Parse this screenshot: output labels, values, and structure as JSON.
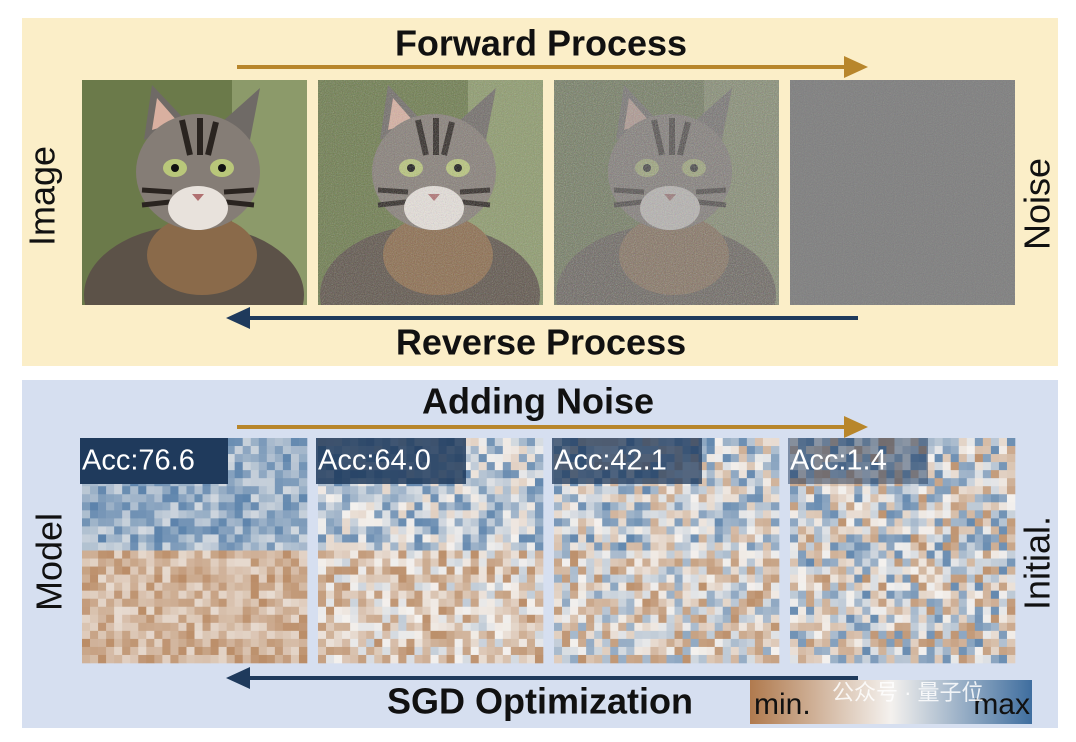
{
  "top_panel": {
    "forward_label": "Forward Process",
    "reverse_label": "Reverse Process",
    "left_label": "Image",
    "right_label": "Noise"
  },
  "bottom_panel": {
    "forward_label": "Adding Noise",
    "reverse_label": "SGD Optimization",
    "left_label": "Model",
    "right_label": "Initial.",
    "accuracy_labels": [
      "Acc:76.6",
      "Acc:64.0",
      "Acc:42.1",
      "Acc:1.4"
    ],
    "colorbar": {
      "min_label": "min.",
      "max_label": "max"
    }
  },
  "watermark": "公众号 · 量子位"
}
